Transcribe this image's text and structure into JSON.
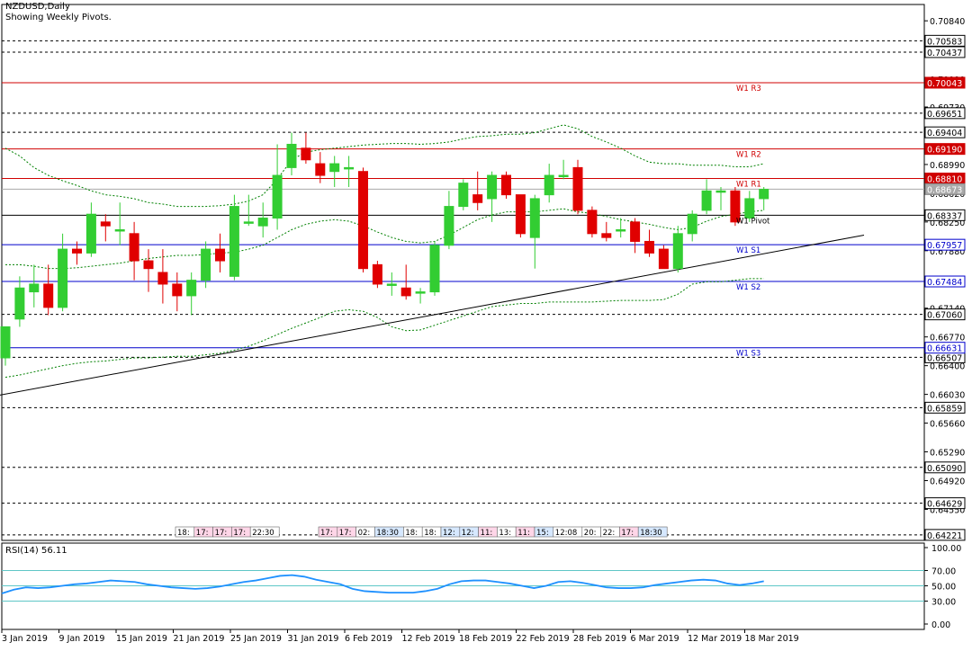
{
  "header": {
    "symbol": "NZDUSD,Daily",
    "subtitle": "Showing Weekly Pivots."
  },
  "colors": {
    "bull": "#32cd32",
    "bear": "#e00000",
    "resistance": "#d00000",
    "support": "#0000cc",
    "pivot": "#000000",
    "rsi": "#1e90ff",
    "band": "#008000"
  },
  "chart_data": {
    "type": "candlestick",
    "ylim": [
      0.6415,
      0.7105
    ],
    "price_ticks": [
      "0.70840",
      "0.70090",
      "0.69730",
      "0.68990",
      "0.68620",
      "0.68250",
      "0.67880",
      "0.67140",
      "0.66770",
      "0.66400",
      "0.66030",
      "0.65660",
      "0.65290",
      "0.64920",
      "0.64550"
    ],
    "x_labels": [
      "3 Jan 2019",
      "9 Jan 2019",
      "15 Jan 2019",
      "21 Jan 2019",
      "25 Jan 2019",
      "31 Jan 2019",
      "6 Feb 2019",
      "12 Feb 2019",
      "18 Feb 2019",
      "22 Feb 2019",
      "28 Feb 2019",
      "6 Mar 2019",
      "12 Mar 2019",
      "18 Mar 2019"
    ],
    "dashed_levels": [
      {
        "label": "0.70583",
        "value": 0.70583
      },
      {
        "label": "0.70437",
        "value": 0.70437
      },
      {
        "label": "0.69651",
        "value": 0.69651
      },
      {
        "label": "0.69404",
        "value": 0.69404
      },
      {
        "label": "0.67060",
        "value": 0.6706
      },
      {
        "label": "0.66507",
        "value": 0.66507
      },
      {
        "label": "0.65859",
        "value": 0.65859
      },
      {
        "label": "0.65090",
        "value": 0.6509
      },
      {
        "label": "0.64629",
        "value": 0.64629
      },
      {
        "label": "0.64221",
        "value": 0.64221
      }
    ],
    "pivots": [
      {
        "name": "W1 R3",
        "label": "0.70043",
        "value": 0.70043,
        "kind": "resistance"
      },
      {
        "name": "W1 R2",
        "label": "0.69190",
        "value": 0.6919,
        "kind": "resistance"
      },
      {
        "name": "W1 R1",
        "label": "0.68810",
        "value": 0.6881,
        "kind": "resistance"
      },
      {
        "name": "W1 Pivot",
        "label": "0.68337",
        "value": 0.68337,
        "kind": "pivot"
      },
      {
        "name": "W1 S1",
        "label": "0.67957",
        "value": 0.67957,
        "kind": "support"
      },
      {
        "name": "W1 S2",
        "label": "0.67484",
        "value": 0.67484,
        "kind": "support"
      },
      {
        "name": "W1 S3",
        "label": "0.66631",
        "value": 0.66631,
        "kind": "support"
      }
    ],
    "current_price": {
      "label": "0.68673",
      "value": 0.68673
    },
    "candles": [
      {
        "o": 0.665,
        "h": 0.669,
        "l": 0.664,
        "c": 0.669
      },
      {
        "o": 0.67,
        "h": 0.6755,
        "l": 0.669,
        "c": 0.674
      },
      {
        "o": 0.6735,
        "h": 0.677,
        "l": 0.6715,
        "c": 0.6745
      },
      {
        "o": 0.6745,
        "h": 0.677,
        "l": 0.6705,
        "c": 0.6715
      },
      {
        "o": 0.6715,
        "h": 0.681,
        "l": 0.671,
        "c": 0.679
      },
      {
        "o": 0.679,
        "h": 0.68,
        "l": 0.677,
        "c": 0.6785
      },
      {
        "o": 0.6785,
        "h": 0.685,
        "l": 0.678,
        "c": 0.6835
      },
      {
        "o": 0.6825,
        "h": 0.6835,
        "l": 0.68,
        "c": 0.682
      },
      {
        "o": 0.6815,
        "h": 0.685,
        "l": 0.6795,
        "c": 0.6815
      },
      {
        "o": 0.681,
        "h": 0.6825,
        "l": 0.675,
        "c": 0.6775
      },
      {
        "o": 0.6775,
        "h": 0.679,
        "l": 0.6735,
        "c": 0.6765
      },
      {
        "o": 0.676,
        "h": 0.679,
        "l": 0.672,
        "c": 0.6745
      },
      {
        "o": 0.6745,
        "h": 0.676,
        "l": 0.671,
        "c": 0.673
      },
      {
        "o": 0.673,
        "h": 0.676,
        "l": 0.6705,
        "c": 0.675
      },
      {
        "o": 0.675,
        "h": 0.68,
        "l": 0.674,
        "c": 0.679
      },
      {
        "o": 0.679,
        "h": 0.681,
        "l": 0.676,
        "c": 0.6775
      },
      {
        "o": 0.6755,
        "h": 0.686,
        "l": 0.675,
        "c": 0.6845
      },
      {
        "o": 0.6825,
        "h": 0.686,
        "l": 0.682,
        "c": 0.6825
      },
      {
        "o": 0.682,
        "h": 0.685,
        "l": 0.6805,
        "c": 0.683
      },
      {
        "o": 0.683,
        "h": 0.6925,
        "l": 0.6815,
        "c": 0.6885
      },
      {
        "o": 0.6895,
        "h": 0.694,
        "l": 0.6885,
        "c": 0.6925
      },
      {
        "o": 0.692,
        "h": 0.694,
        "l": 0.69,
        "c": 0.6905
      },
      {
        "o": 0.69,
        "h": 0.6915,
        "l": 0.6875,
        "c": 0.6885
      },
      {
        "o": 0.689,
        "h": 0.691,
        "l": 0.687,
        "c": 0.69
      },
      {
        "o": 0.6895,
        "h": 0.691,
        "l": 0.687,
        "c": 0.6895
      },
      {
        "o": 0.689,
        "h": 0.6895,
        "l": 0.676,
        "c": 0.6765
      },
      {
        "o": 0.677,
        "h": 0.6775,
        "l": 0.674,
        "c": 0.6745
      },
      {
        "o": 0.6745,
        "h": 0.676,
        "l": 0.673,
        "c": 0.6745
      },
      {
        "o": 0.674,
        "h": 0.677,
        "l": 0.6725,
        "c": 0.673
      },
      {
        "o": 0.6735,
        "h": 0.674,
        "l": 0.672,
        "c": 0.6735
      },
      {
        "o": 0.6735,
        "h": 0.68,
        "l": 0.673,
        "c": 0.6795
      },
      {
        "o": 0.6795,
        "h": 0.6865,
        "l": 0.679,
        "c": 0.6845
      },
      {
        "o": 0.6845,
        "h": 0.688,
        "l": 0.684,
        "c": 0.6875
      },
      {
        "o": 0.686,
        "h": 0.689,
        "l": 0.684,
        "c": 0.685
      },
      {
        "o": 0.6855,
        "h": 0.689,
        "l": 0.6825,
        "c": 0.6885
      },
      {
        "o": 0.6885,
        "h": 0.689,
        "l": 0.6855,
        "c": 0.686
      },
      {
        "o": 0.686,
        "h": 0.686,
        "l": 0.6805,
        "c": 0.681
      },
      {
        "o": 0.6805,
        "h": 0.686,
        "l": 0.6765,
        "c": 0.6855
      },
      {
        "o": 0.686,
        "h": 0.69,
        "l": 0.685,
        "c": 0.6885
      },
      {
        "o": 0.6885,
        "h": 0.6905,
        "l": 0.688,
        "c": 0.6885
      },
      {
        "o": 0.6895,
        "h": 0.6905,
        "l": 0.6835,
        "c": 0.684
      },
      {
        "o": 0.684,
        "h": 0.6845,
        "l": 0.6805,
        "c": 0.681
      },
      {
        "o": 0.681,
        "h": 0.6825,
        "l": 0.68,
        "c": 0.6805
      },
      {
        "o": 0.6815,
        "h": 0.683,
        "l": 0.6805,
        "c": 0.6815
      },
      {
        "o": 0.6825,
        "h": 0.683,
        "l": 0.6785,
        "c": 0.68
      },
      {
        "o": 0.68,
        "h": 0.6815,
        "l": 0.678,
        "c": 0.6785
      },
      {
        "o": 0.679,
        "h": 0.6795,
        "l": 0.6765,
        "c": 0.6765
      },
      {
        "o": 0.6765,
        "h": 0.682,
        "l": 0.676,
        "c": 0.681
      },
      {
        "o": 0.681,
        "h": 0.684,
        "l": 0.68,
        "c": 0.6835
      },
      {
        "o": 0.684,
        "h": 0.688,
        "l": 0.6835,
        "c": 0.6865
      },
      {
        "o": 0.6865,
        "h": 0.687,
        "l": 0.684,
        "c": 0.6865
      },
      {
        "o": 0.6865,
        "h": 0.687,
        "l": 0.682,
        "c": 0.6825
      },
      {
        "o": 0.683,
        "h": 0.6865,
        "l": 0.6825,
        "c": 0.6855
      },
      {
        "o": 0.6855,
        "h": 0.687,
        "l": 0.684,
        "c": 0.6867
      }
    ],
    "bollinger": {
      "upper": [
        0.692,
        0.691,
        0.6895,
        0.6885,
        0.6878,
        0.6872,
        0.6865,
        0.686,
        0.6858,
        0.6855,
        0.685,
        0.6848,
        0.6845,
        0.6845,
        0.6845,
        0.6846,
        0.6848,
        0.6852,
        0.686,
        0.688,
        0.6905,
        0.6915,
        0.6918,
        0.692,
        0.6922,
        0.6924,
        0.6925,
        0.6926,
        0.6926,
        0.6925,
        0.6926,
        0.6928,
        0.6932,
        0.6935,
        0.6936,
        0.6938,
        0.6938,
        0.694,
        0.6945,
        0.695,
        0.6945,
        0.6935,
        0.6928,
        0.692,
        0.691,
        0.6902,
        0.69,
        0.69,
        0.6898,
        0.6898,
        0.6898,
        0.6896,
        0.6896,
        0.69
      ],
      "middle": [
        0.677,
        0.677,
        0.6768,
        0.6765,
        0.6765,
        0.6766,
        0.6768,
        0.677,
        0.6772,
        0.6775,
        0.6778,
        0.678,
        0.6782,
        0.6782,
        0.6783,
        0.6785,
        0.6786,
        0.679,
        0.6795,
        0.6805,
        0.6815,
        0.6822,
        0.6826,
        0.6828,
        0.6826,
        0.682,
        0.6812,
        0.6805,
        0.68,
        0.6798,
        0.68,
        0.6808,
        0.6818,
        0.6828,
        0.6834,
        0.6838,
        0.6838,
        0.6838,
        0.684,
        0.6842,
        0.6838,
        0.6836,
        0.6832,
        0.6828,
        0.6825,
        0.6822,
        0.6818,
        0.6815,
        0.6818,
        0.6826,
        0.6832,
        0.6835,
        0.6838,
        0.684
      ],
      "lower": [
        0.6625,
        0.6628,
        0.6632,
        0.6636,
        0.664,
        0.6643,
        0.6645,
        0.6646,
        0.6648,
        0.665,
        0.665,
        0.6651,
        0.6652,
        0.6652,
        0.6654,
        0.6656,
        0.666,
        0.6665,
        0.6672,
        0.668,
        0.6688,
        0.6695,
        0.6702,
        0.671,
        0.6712,
        0.671,
        0.6702,
        0.669,
        0.6685,
        0.6686,
        0.6692,
        0.6698,
        0.6704,
        0.671,
        0.6716,
        0.6718,
        0.672,
        0.672,
        0.6722,
        0.6722,
        0.6722,
        0.6722,
        0.6723,
        0.6724,
        0.6724,
        0.6724,
        0.6725,
        0.6732,
        0.6745,
        0.6748,
        0.6748,
        0.675,
        0.6752,
        0.6752
      ]
    },
    "trendline": {
      "from": {
        "index": -1,
        "value": 0.66
      },
      "to": {
        "index": 60,
        "value": 0.6808
      }
    },
    "rsi": {
      "label": "RSI(14) 56.11",
      "ticks": [
        "100.00",
        "70.00",
        "50.00",
        "30.00",
        "0.00"
      ],
      "levels": [
        70,
        50,
        30
      ],
      "values": [
        40,
        45,
        48,
        47,
        48,
        50,
        52,
        53,
        55,
        57,
        56,
        55,
        52,
        50,
        48,
        47,
        46,
        47,
        49,
        52,
        55,
        57,
        60,
        63,
        64,
        62,
        58,
        55,
        52,
        46,
        43,
        42,
        41,
        41,
        41,
        43,
        46,
        52,
        56,
        57,
        57,
        55,
        53,
        50,
        47,
        50,
        55,
        56,
        54,
        51,
        48,
        47,
        47,
        48,
        51,
        53,
        55,
        57,
        58,
        57,
        53,
        51,
        53,
        56
      ]
    },
    "time_labels_a": [
      "18:",
      "17:",
      "17:",
      "17:",
      "22:30"
    ],
    "time_labels_b": [
      "17:",
      "17:",
      "02:",
      "18:30",
      "18:",
      "18:",
      "12:",
      "12:",
      "11:",
      "13:",
      "11:",
      "15:",
      "12:08",
      "20:",
      "22:",
      "17:",
      "18:30"
    ]
  }
}
